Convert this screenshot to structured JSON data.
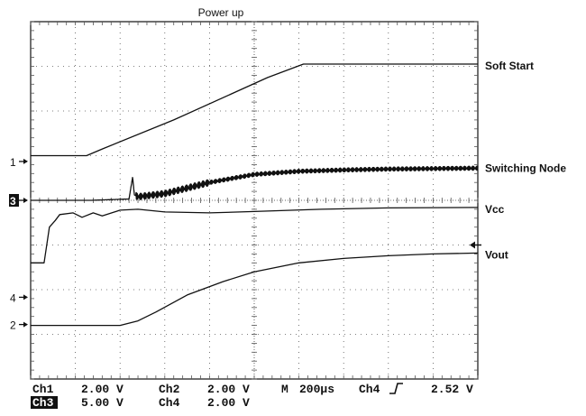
{
  "chart_data": {
    "type": "line",
    "title": "Power up",
    "grid": true,
    "x": {
      "divisions": 10,
      "unit": "div",
      "range": [
        0,
        10
      ]
    },
    "y": {
      "divisions": 8,
      "unit": "div",
      "range": [
        -4,
        4
      ]
    },
    "series": [
      {
        "name": "Soft Start",
        "channel": "1",
        "points": [
          [
            0,
            1.0
          ],
          [
            1.25,
            1.0
          ],
          [
            1.6,
            1.15
          ],
          [
            3.2,
            1.8
          ],
          [
            5.3,
            2.75
          ],
          [
            6.1,
            3.05
          ],
          [
            10,
            3.05
          ]
        ]
      },
      {
        "name": "Switching Node",
        "channel": "3",
        "points": [
          [
            0,
            0
          ],
          [
            1.35,
            0
          ],
          [
            2.2,
            0.03
          ],
          [
            2.28,
            0.52
          ],
          [
            2.32,
            0.12
          ],
          [
            2.4,
            0.08
          ],
          [
            3,
            0.15
          ],
          [
            4,
            0.4
          ],
          [
            5,
            0.58
          ],
          [
            6,
            0.65
          ],
          [
            7,
            0.68
          ],
          [
            8,
            0.7
          ],
          [
            10,
            0.72
          ]
        ],
        "ripple": 0.045
      },
      {
        "name": "Vcc",
        "channel": "2",
        "points": [
          [
            0,
            -1.4
          ],
          [
            0.3,
            -1.4
          ],
          [
            0.42,
            -0.6
          ],
          [
            0.55,
            -0.45
          ],
          [
            0.65,
            -0.32
          ],
          [
            0.95,
            -0.28
          ],
          [
            1.15,
            -0.38
          ],
          [
            1.4,
            -0.28
          ],
          [
            1.6,
            -0.35
          ],
          [
            2.0,
            -0.22
          ],
          [
            2.4,
            -0.2
          ],
          [
            3.0,
            -0.26
          ],
          [
            4.0,
            -0.28
          ],
          [
            5.0,
            -0.25
          ],
          [
            6.5,
            -0.2
          ],
          [
            8,
            -0.17
          ],
          [
            10,
            -0.16
          ]
        ]
      },
      {
        "name": "Vout",
        "channel": "4",
        "points": [
          [
            0,
            -2.8
          ],
          [
            2.0,
            -2.8
          ],
          [
            2.4,
            -2.7
          ],
          [
            2.8,
            -2.5
          ],
          [
            3.5,
            -2.12
          ],
          [
            4.3,
            -1.82
          ],
          [
            5.0,
            -1.6
          ],
          [
            6,
            -1.4
          ],
          [
            7,
            -1.3
          ],
          [
            8,
            -1.24
          ],
          [
            9,
            -1.2
          ],
          [
            10,
            -1.18
          ]
        ]
      }
    ],
    "markers": [
      {
        "label": "1",
        "y": 0.87
      },
      {
        "label": "3",
        "y": 0.0,
        "inverted": true
      },
      {
        "label": "4",
        "y": -2.17
      },
      {
        "label": "2",
        "y": -2.78
      }
    ],
    "trigger_marker": {
      "y": -1.0
    },
    "readout": {
      "row1": [
        "Ch1",
        "2.00 V",
        "Ch2",
        "2.00 V",
        "M",
        "200µs",
        "Ch4",
        "2.52 V"
      ],
      "row2": [
        "Ch3",
        "5.00 V",
        "Ch4",
        "2.00 V"
      ],
      "trigger_slope_icon": "rising-edge-icon"
    },
    "colors": {
      "trace": "#111111",
      "grid": "#555555",
      "background": "#ffffff"
    }
  }
}
